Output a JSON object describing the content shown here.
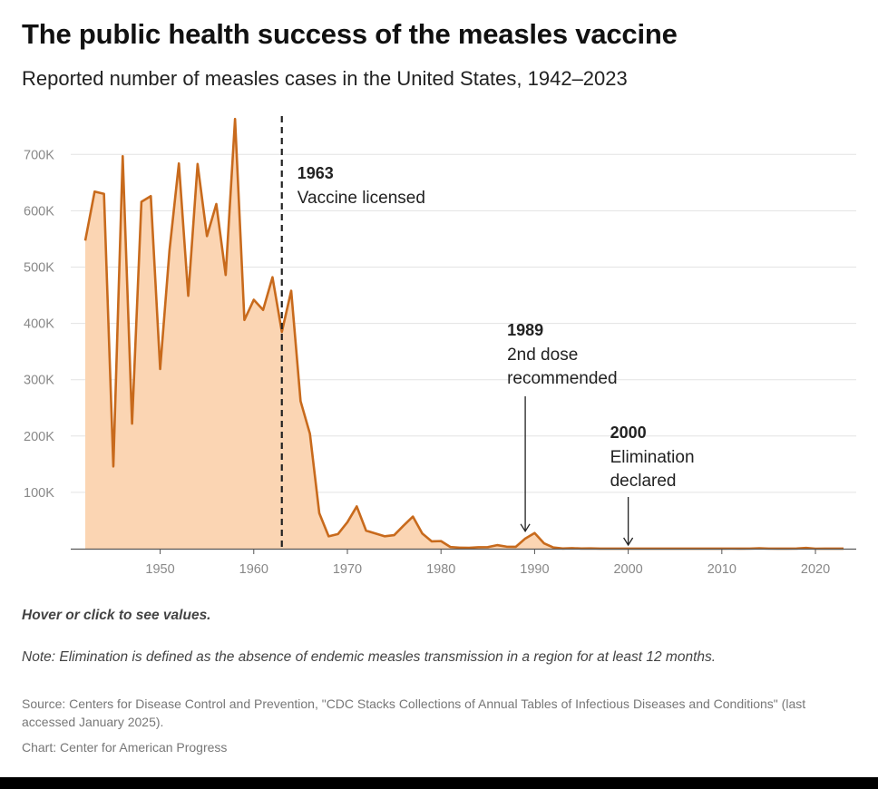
{
  "chart_data": {
    "type": "area",
    "title": "The public health success of the measles vaccine",
    "subtitle": "Reported number of measles cases in the United States, 1942–2023",
    "xlabel": "",
    "ylabel": "",
    "xlim": [
      1942,
      2023
    ],
    "ylim": [
      0,
      780000
    ],
    "x_ticks": [
      1950,
      1960,
      1970,
      1980,
      1990,
      2000,
      2010,
      2020
    ],
    "y_ticks": [
      {
        "value": 100000,
        "label": "100K"
      },
      {
        "value": 200000,
        "label": "200K"
      },
      {
        "value": 300000,
        "label": "300K"
      },
      {
        "value": 400000,
        "label": "400K"
      },
      {
        "value": 500000,
        "label": "500K"
      },
      {
        "value": 600000,
        "label": "600K"
      },
      {
        "value": 700000,
        "label": "700K"
      }
    ],
    "grid": true,
    "series": [
      {
        "name": "Measles cases",
        "color": "#c86a1c",
        "fill": "#fbd5b3",
        "x": [
          1942,
          1943,
          1944,
          1945,
          1946,
          1947,
          1948,
          1949,
          1950,
          1951,
          1952,
          1953,
          1954,
          1955,
          1956,
          1957,
          1958,
          1959,
          1960,
          1961,
          1962,
          1963,
          1964,
          1965,
          1966,
          1967,
          1968,
          1969,
          1970,
          1971,
          1972,
          1973,
          1974,
          1975,
          1976,
          1977,
          1978,
          1979,
          1980,
          1981,
          1982,
          1983,
          1984,
          1985,
          1986,
          1987,
          1988,
          1989,
          1990,
          1991,
          1992,
          1993,
          1994,
          1995,
          1996,
          1997,
          1998,
          1999,
          2000,
          2001,
          2002,
          2003,
          2004,
          2005,
          2006,
          2007,
          2008,
          2009,
          2010,
          2011,
          2012,
          2013,
          2014,
          2015,
          2016,
          2017,
          2018,
          2019,
          2020,
          2021,
          2022,
          2023
        ],
        "values": [
          547000,
          634000,
          630000,
          146000,
          697000,
          222000,
          616000,
          626000,
          319000,
          530000,
          684000,
          449000,
          683000,
          555000,
          612000,
          486000,
          763000,
          406000,
          442000,
          424000,
          482000,
          385000,
          458000,
          262000,
          204000,
          63000,
          22000,
          26000,
          47000,
          75000,
          32000,
          27000,
          22000,
          24000,
          41000,
          57000,
          27000,
          13000,
          13500,
          3000,
          1700,
          1500,
          2600,
          2800,
          6300,
          3600,
          3400,
          18000,
          27800,
          9600,
          2200,
          300,
          960,
          300,
          500,
          140,
          100,
          100,
          86,
          116,
          44,
          56,
          37,
          66,
          55,
          43,
          140,
          71,
          63,
          220,
          55,
          187,
          667,
          188,
          86,
          120,
          375,
          1282,
          13,
          49,
          121,
          59
        ]
      }
    ],
    "annotations": [
      {
        "year": 1963,
        "bold": "1963",
        "lines": [
          "Vaccine licensed"
        ],
        "marker": "dashed-line"
      },
      {
        "year": 1989,
        "bold": "1989",
        "lines": [
          "2nd dose",
          "recommended"
        ],
        "marker": "arrow"
      },
      {
        "year": 2000,
        "bold": "2000",
        "lines": [
          "Elimination",
          "declared"
        ],
        "marker": "arrow"
      }
    ]
  },
  "footer": {
    "hover_hint": "Hover or click to see values.",
    "note": "Note: Elimination is defined as the absence of endemic measles transmission in a region for at least 12 months.",
    "source": "Source: Centers for Disease Control and Prevention, \"CDC Stacks Collections of Annual Tables of Infectious Diseases and Conditions\" (last accessed January 2025).",
    "credit": "Chart: Center for American Progress"
  }
}
